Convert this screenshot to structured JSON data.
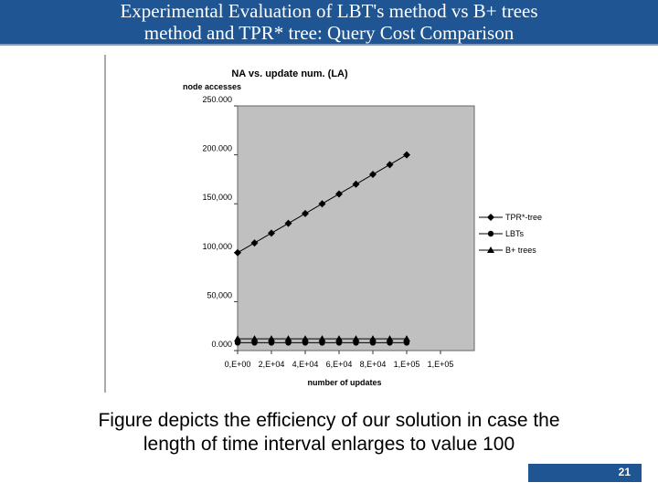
{
  "slide": {
    "title_line1": "Experimental Evaluation of LBT's method vs B+ trees",
    "title_line2": "method and TPR* tree: Query Cost Comparison",
    "caption_line1": "Figure depicts the efficiency of our solution in case the",
    "caption_line2": "length of time interval enlarges to value 100",
    "page_number": "21"
  },
  "chart_data": {
    "type": "line",
    "title": "NA vs. update num. (LA)",
    "ylabel": "node accesses",
    "xlabel": "number of updates",
    "ylim": [
      0,
      250000
    ],
    "xlim": [
      0,
      140000
    ],
    "y_ticks": [
      {
        "value": 0,
        "label": "0.000"
      },
      {
        "value": 50000,
        "label": "50,000"
      },
      {
        "value": 100000,
        "label": "100,000"
      },
      {
        "value": 150000,
        "label": "150,000"
      },
      {
        "value": 200000,
        "label": "200.000"
      },
      {
        "value": 250000,
        "label": "250.000"
      }
    ],
    "x_ticks": [
      {
        "value": 0,
        "label": "0,E+00"
      },
      {
        "value": 20000,
        "label": "2,E+04"
      },
      {
        "value": 40000,
        "label": "4,E+04"
      },
      {
        "value": 60000,
        "label": "6,E+04"
      },
      {
        "value": 80000,
        "label": "8,E+04"
      },
      {
        "value": 100000,
        "label": "1,E+05"
      },
      {
        "value": 120000,
        "label": "1,E+05"
      }
    ],
    "x": [
      0,
      10000,
      20000,
      30000,
      40000,
      50000,
      60000,
      70000,
      80000,
      90000,
      100000
    ],
    "series": [
      {
        "name": "TPR*-tree",
        "marker": "diamond",
        "values": [
          100000,
          110000,
          120000,
          130000,
          140000,
          150000,
          160000,
          170000,
          180000,
          190000,
          200000
        ]
      },
      {
        "name": "LBTs",
        "marker": "circle",
        "values": [
          8000,
          8000,
          8000,
          8000,
          8000,
          8000,
          8000,
          8000,
          8000,
          8000,
          8000
        ]
      },
      {
        "name": "B+ trees",
        "marker": "triangle",
        "values": [
          12000,
          12000,
          12000,
          12000,
          12000,
          12000,
          12000,
          12000,
          12000,
          12000,
          12000
        ]
      }
    ],
    "legend_position": "right",
    "grid": false,
    "plot_background": "#c0c0c0"
  }
}
